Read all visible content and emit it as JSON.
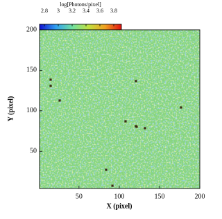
{
  "chart_data": {
    "type": "heatmap",
    "x_label": "X (pixel)",
    "y_label": "Y (pixel)",
    "xlim": [
      1,
      200
    ],
    "ylim": [
      4,
      200
    ],
    "xticks": [
      50,
      100,
      150,
      200
    ],
    "yticks": [
      50,
      100,
      150,
      200
    ],
    "field_color": "#86d57e",
    "colorbar": {
      "label": "log[Photons/pixel]",
      "lim": [
        2.73,
        3.91
      ],
      "ticks": [
        2.8,
        3,
        3.2,
        3.4,
        3.6,
        3.8
      ],
      "colors": [
        "#1010d0",
        "#30a0f0",
        "#70e0a0",
        "#c0e040",
        "#f0a020",
        "#e01010"
      ]
    },
    "spots": {
      "color": "#3b2a12",
      "x": [
        14.8,
        14.8,
        26,
        120.7,
        176.7,
        107.8,
        120.7,
        121.6,
        131.9,
        83.7,
        91.5
      ],
      "y": [
        138.4,
        130.7,
        112.7,
        136.7,
        104.1,
        87,
        81,
        80.2,
        78.5,
        27.1,
        7.4
      ]
    }
  }
}
